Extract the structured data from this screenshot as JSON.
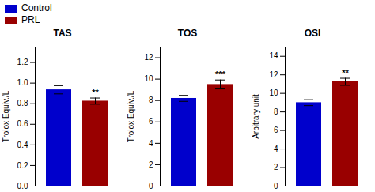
{
  "chart_data": [
    {
      "type": "bar",
      "title": "TAS",
      "ylabel": "Trolox Equiv./L",
      "categories": [
        "Control",
        "PRL"
      ],
      "values": [
        0.935,
        0.825
      ],
      "errors": [
        0.04,
        0.03
      ],
      "colors": [
        "#0000CC",
        "#990000"
      ],
      "ylim": [
        0,
        1.35
      ],
      "yticks": [
        {
          "value": 0,
          "label": "0.0"
        },
        0.2,
        0.4,
        0.6,
        0.8,
        {
          "value": 1,
          "label": "1.0"
        },
        1.2
      ],
      "annotations": [
        {
          "text": "**",
          "x": "PRL",
          "y": 0.87
        }
      ],
      "tick_labels": "y",
      "legend": "upper left"
    },
    {
      "type": "bar",
      "title": "TOS",
      "ylabel": "Trolox Equiv./L",
      "categories": [
        "Control",
        "PRL"
      ],
      "values": [
        8.2,
        9.5
      ],
      "errors": [
        0.28,
        0.42
      ],
      "colors": [
        "#0000CC",
        "#990000"
      ],
      "ylim": [
        0,
        13.0
      ],
      "yticks": [
        0,
        2,
        4,
        6,
        8,
        10,
        12
      ],
      "annotations": [
        {
          "text": "***",
          "x": "PRL",
          "y": 10.1
        }
      ],
      "tick_labels": "y",
      "legend": "upper left"
    },
    {
      "type": "bar",
      "title": "OSI",
      "ylabel": "Arbitrary unit",
      "categories": [
        "Control",
        "PRL"
      ],
      "values": [
        9.0,
        11.25
      ],
      "errors": [
        0.32,
        0.38
      ],
      "colors": [
        "#0000CC",
        "#990000"
      ],
      "ylim": [
        0,
        15.0
      ],
      "yticks": [
        0,
        2,
        4,
        6,
        8,
        10,
        12,
        14
      ],
      "annotations": [
        {
          "text": "**",
          "x": "PRL",
          "y": 11.8
        }
      ],
      "tick_labels": "y",
      "legend": "upper left"
    }
  ]
}
